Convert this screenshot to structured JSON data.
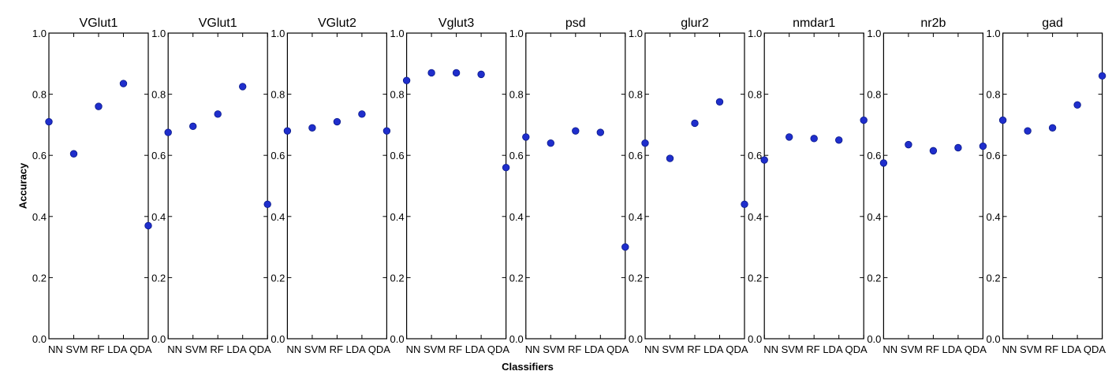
{
  "chart_data": {
    "type": "scatter",
    "ylabel": "Accuracy",
    "xlabel": "Classifiers",
    "ylim": [
      0.0,
      1.0
    ],
    "yticks": [
      "0.0",
      "0.2",
      "0.4",
      "0.6",
      "0.8",
      "1.0"
    ],
    "categories": [
      "NN",
      "SVM",
      "RF",
      "LDA",
      "QDA"
    ],
    "grid": false,
    "marker_color": "#1f2ecc",
    "panels": [
      {
        "title": "VGlut1",
        "values": [
          0.71,
          0.605,
          0.76,
          0.835,
          0.37
        ]
      },
      {
        "title": "VGlut1",
        "values": [
          0.675,
          0.695,
          0.735,
          0.825,
          0.44
        ]
      },
      {
        "title": "VGlut2",
        "values": [
          0.68,
          0.69,
          0.71,
          0.735,
          0.68
        ]
      },
      {
        "title": "Vglut3",
        "values": [
          0.845,
          0.87,
          0.87,
          0.865,
          0.56
        ]
      },
      {
        "title": "psd",
        "values": [
          0.66,
          0.64,
          0.68,
          0.675,
          0.3
        ]
      },
      {
        "title": "glur2",
        "values": [
          0.64,
          0.59,
          0.705,
          0.775,
          0.44
        ]
      },
      {
        "title": "nmdar1",
        "values": [
          0.585,
          0.66,
          0.655,
          0.65,
          0.715
        ]
      },
      {
        "title": "nr2b",
        "values": [
          0.575,
          0.635,
          0.615,
          0.625,
          0.63
        ]
      },
      {
        "title": "gad",
        "values": [
          0.715,
          0.68,
          0.69,
          0.765,
          0.86
        ]
      }
    ]
  }
}
